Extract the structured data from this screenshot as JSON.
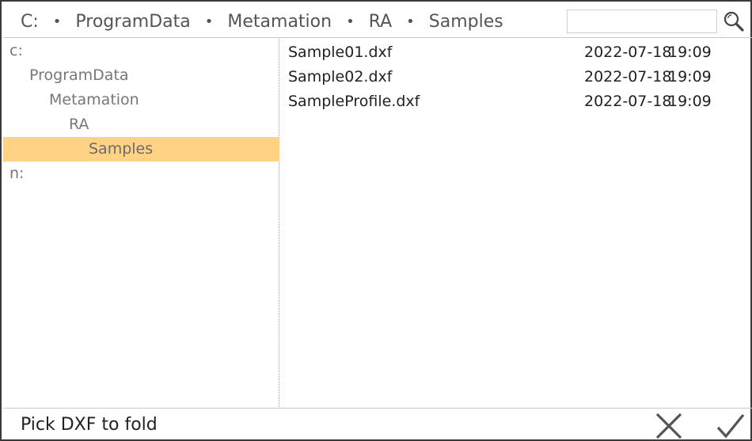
{
  "breadcrumb": {
    "items": [
      "C:",
      "ProgramData",
      "Metamation",
      "RA",
      "Samples"
    ],
    "separator": "•"
  },
  "search": {
    "value": "",
    "placeholder": ""
  },
  "tree": {
    "items": [
      {
        "label": "c:",
        "depth": 0,
        "selected": false
      },
      {
        "label": "ProgramData",
        "depth": 1,
        "selected": false
      },
      {
        "label": "Metamation",
        "depth": 2,
        "selected": false
      },
      {
        "label": "RA",
        "depth": 3,
        "selected": false
      },
      {
        "label": "Samples",
        "depth": 4,
        "selected": true
      },
      {
        "label": "n:",
        "depth": 0,
        "selected": false
      }
    ]
  },
  "files": [
    {
      "name": "Sample01.dxf",
      "date": "2022-07-18",
      "time": "19:09"
    },
    {
      "name": "Sample02.dxf",
      "date": "2022-07-18",
      "time": "19:09"
    },
    {
      "name": "SampleProfile.dxf",
      "date": "2022-07-18",
      "time": "19:09"
    }
  ],
  "footer": {
    "status": "Pick DXF to fold"
  },
  "colors": {
    "selection": "#ffd383",
    "border": "#3a3a3a",
    "icon": "#555555"
  }
}
